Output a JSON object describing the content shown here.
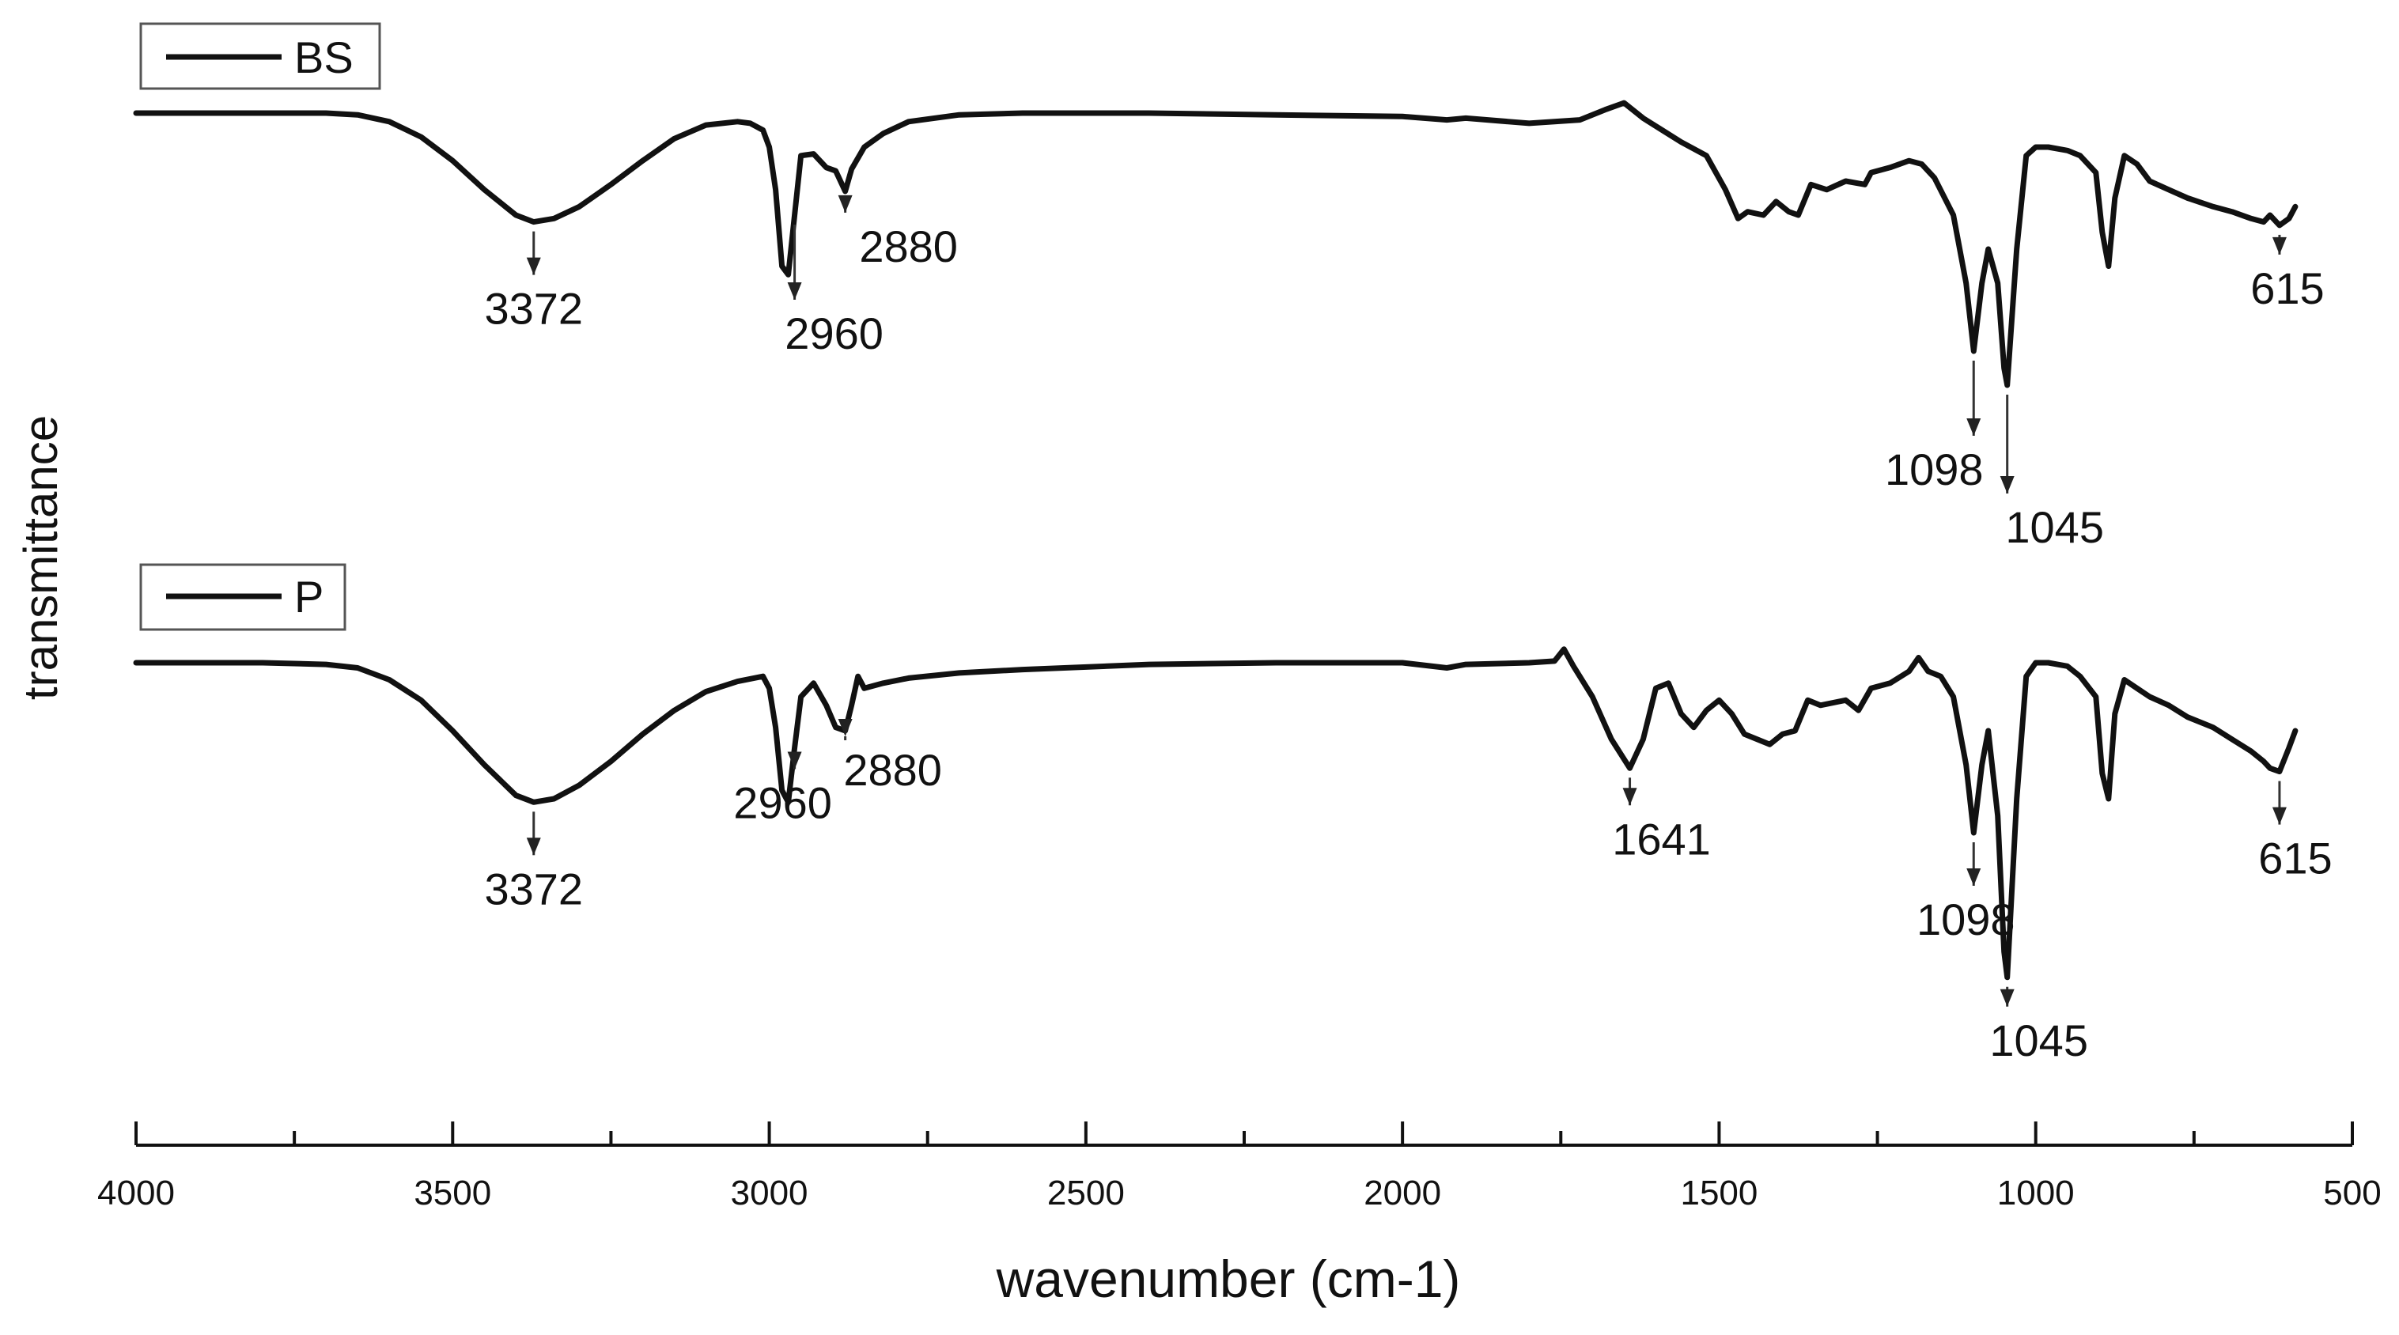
{
  "chart_data": {
    "type": "line",
    "xlabel": "wavenumber (cm-1)",
    "ylabel": "transmittance",
    "xlim": [
      4000,
      500
    ],
    "x_reversed": true,
    "x_ticks": [
      4000,
      3500,
      3000,
      2500,
      2000,
      1500,
      1000,
      500
    ],
    "x_tick_labels": [
      "4000",
      "3500",
      "3000",
      "2500",
      "2000",
      "1500",
      "1000",
      "500"
    ],
    "grid": false,
    "series": [
      {
        "name": "BS",
        "legend_label": "BS",
        "peaks": [
          {
            "x": 3372,
            "label": "3372"
          },
          {
            "x": 2960,
            "label": "2960"
          },
          {
            "x": 2880,
            "label": "2880"
          },
          {
            "x": 1098,
            "label": "1098"
          },
          {
            "x": 1045,
            "label": "1045"
          },
          {
            "x": 615,
            "label": "615"
          }
        ],
        "points": [
          [
            4000,
            0.0
          ],
          [
            3900,
            0.0
          ],
          [
            3800,
            0.0
          ],
          [
            3700,
            0.0
          ],
          [
            3650,
            0.01
          ],
          [
            3600,
            0.05
          ],
          [
            3550,
            0.14
          ],
          [
            3500,
            0.28
          ],
          [
            3450,
            0.45
          ],
          [
            3400,
            0.6
          ],
          [
            3372,
            0.64
          ],
          [
            3340,
            0.62
          ],
          [
            3300,
            0.55
          ],
          [
            3250,
            0.42
          ],
          [
            3200,
            0.28
          ],
          [
            3150,
            0.15
          ],
          [
            3100,
            0.07
          ],
          [
            3050,
            0.05
          ],
          [
            3030,
            0.06
          ],
          [
            3010,
            0.1
          ],
          [
            3000,
            0.2
          ],
          [
            2990,
            0.45
          ],
          [
            2980,
            0.9
          ],
          [
            2970,
            0.95
          ],
          [
            2960,
            0.6
          ],
          [
            2950,
            0.25
          ],
          [
            2930,
            0.24
          ],
          [
            2910,
            0.32
          ],
          [
            2895,
            0.34
          ],
          [
            2880,
            0.46
          ],
          [
            2870,
            0.33
          ],
          [
            2850,
            0.2
          ],
          [
            2820,
            0.12
          ],
          [
            2780,
            0.05
          ],
          [
            2700,
            0.01
          ],
          [
            2600,
            0.0
          ],
          [
            2400,
            0.0
          ],
          [
            2200,
            0.01
          ],
          [
            2000,
            0.02
          ],
          [
            1930,
            0.04
          ],
          [
            1900,
            0.03
          ],
          [
            1800,
            0.06
          ],
          [
            1720,
            0.04
          ],
          [
            1680,
            -0.02
          ],
          [
            1650,
            -0.06
          ],
          [
            1620,
            0.03
          ],
          [
            1590,
            0.1
          ],
          [
            1560,
            0.17
          ],
          [
            1520,
            0.25
          ],
          [
            1490,
            0.45
          ],
          [
            1470,
            0.62
          ],
          [
            1455,
            0.58
          ],
          [
            1430,
            0.6
          ],
          [
            1410,
            0.52
          ],
          [
            1390,
            0.58
          ],
          [
            1375,
            0.6
          ],
          [
            1355,
            0.42
          ],
          [
            1330,
            0.45
          ],
          [
            1300,
            0.4
          ],
          [
            1270,
            0.42
          ],
          [
            1260,
            0.35
          ],
          [
            1230,
            0.32
          ],
          [
            1200,
            0.28
          ],
          [
            1180,
            0.3
          ],
          [
            1160,
            0.38
          ],
          [
            1130,
            0.6
          ],
          [
            1110,
            1.0
          ],
          [
            1098,
            1.4
          ],
          [
            1085,
            1.0
          ],
          [
            1075,
            0.8
          ],
          [
            1060,
            1.0
          ],
          [
            1050,
            1.5
          ],
          [
            1045,
            1.6
          ],
          [
            1030,
            0.8
          ],
          [
            1015,
            0.25
          ],
          [
            1000,
            0.2
          ],
          [
            980,
            0.2
          ],
          [
            950,
            0.22
          ],
          [
            930,
            0.25
          ],
          [
            905,
            0.35
          ],
          [
            895,
            0.7
          ],
          [
            885,
            0.9
          ],
          [
            875,
            0.5
          ],
          [
            860,
            0.25
          ],
          [
            840,
            0.3
          ],
          [
            820,
            0.4
          ],
          [
            790,
            0.45
          ],
          [
            760,
            0.5
          ],
          [
            720,
            0.55
          ],
          [
            690,
            0.58
          ],
          [
            660,
            0.62
          ],
          [
            640,
            0.64
          ],
          [
            630,
            0.6
          ],
          [
            615,
            0.66
          ],
          [
            600,
            0.62
          ],
          [
            590,
            0.55
          ]
        ]
      },
      {
        "name": "P",
        "legend_label": "P",
        "peaks": [
          {
            "x": 3372,
            "label": "3372"
          },
          {
            "x": 2960,
            "label": "2960"
          },
          {
            "x": 2880,
            "label": "2880"
          },
          {
            "x": 1641,
            "label": "1641"
          },
          {
            "x": 1098,
            "label": "1098"
          },
          {
            "x": 1045,
            "label": "1045"
          },
          {
            "x": 615,
            "label": "615"
          }
        ],
        "points": [
          [
            4000,
            0.0
          ],
          [
            3900,
            0.0
          ],
          [
            3800,
            0.0
          ],
          [
            3700,
            0.01
          ],
          [
            3650,
            0.03
          ],
          [
            3600,
            0.1
          ],
          [
            3550,
            0.22
          ],
          [
            3500,
            0.4
          ],
          [
            3450,
            0.6
          ],
          [
            3400,
            0.78
          ],
          [
            3372,
            0.82
          ],
          [
            3340,
            0.8
          ],
          [
            3300,
            0.72
          ],
          [
            3250,
            0.58
          ],
          [
            3200,
            0.42
          ],
          [
            3150,
            0.28
          ],
          [
            3100,
            0.17
          ],
          [
            3050,
            0.11
          ],
          [
            3010,
            0.08
          ],
          [
            3000,
            0.15
          ],
          [
            2990,
            0.38
          ],
          [
            2980,
            0.75
          ],
          [
            2970,
            0.82
          ],
          [
            2960,
            0.5
          ],
          [
            2950,
            0.2
          ],
          [
            2930,
            0.12
          ],
          [
            2910,
            0.25
          ],
          [
            2895,
            0.38
          ],
          [
            2880,
            0.4
          ],
          [
            2870,
            0.25
          ],
          [
            2860,
            0.08
          ],
          [
            2850,
            0.15
          ],
          [
            2820,
            0.12
          ],
          [
            2780,
            0.09
          ],
          [
            2700,
            0.06
          ],
          [
            2600,
            0.04
          ],
          [
            2400,
            0.01
          ],
          [
            2200,
            0.0
          ],
          [
            2000,
            0.0
          ],
          [
            1930,
            0.03
          ],
          [
            1900,
            0.01
          ],
          [
            1800,
            0.0
          ],
          [
            1760,
            -0.01
          ],
          [
            1745,
            -0.08
          ],
          [
            1730,
            0.02
          ],
          [
            1700,
            0.2
          ],
          [
            1670,
            0.45
          ],
          [
            1641,
            0.62
          ],
          [
            1620,
            0.45
          ],
          [
            1600,
            0.15
          ],
          [
            1580,
            0.12
          ],
          [
            1560,
            0.3
          ],
          [
            1540,
            0.38
          ],
          [
            1520,
            0.28
          ],
          [
            1500,
            0.22
          ],
          [
            1480,
            0.3
          ],
          [
            1460,
            0.42
          ],
          [
            1440,
            0.45
          ],
          [
            1420,
            0.48
          ],
          [
            1400,
            0.42
          ],
          [
            1380,
            0.4
          ],
          [
            1360,
            0.22
          ],
          [
            1340,
            0.25
          ],
          [
            1300,
            0.22
          ],
          [
            1280,
            0.28
          ],
          [
            1260,
            0.15
          ],
          [
            1230,
            0.12
          ],
          [
            1200,
            0.05
          ],
          [
            1185,
            -0.03
          ],
          [
            1170,
            0.05
          ],
          [
            1150,
            0.08
          ],
          [
            1130,
            0.2
          ],
          [
            1110,
            0.6
          ],
          [
            1098,
            1.0
          ],
          [
            1085,
            0.6
          ],
          [
            1075,
            0.4
          ],
          [
            1060,
            0.9
          ],
          [
            1050,
            1.7
          ],
          [
            1045,
            1.85
          ],
          [
            1030,
            0.8
          ],
          [
            1015,
            0.08
          ],
          [
            1000,
            0.0
          ],
          [
            980,
            0.0
          ],
          [
            950,
            0.02
          ],
          [
            930,
            0.08
          ],
          [
            905,
            0.2
          ],
          [
            895,
            0.65
          ],
          [
            885,
            0.8
          ],
          [
            875,
            0.3
          ],
          [
            860,
            0.1
          ],
          [
            840,
            0.15
          ],
          [
            820,
            0.2
          ],
          [
            790,
            0.25
          ],
          [
            760,
            0.32
          ],
          [
            720,
            0.38
          ],
          [
            690,
            0.45
          ],
          [
            660,
            0.52
          ],
          [
            640,
            0.58
          ],
          [
            630,
            0.62
          ],
          [
            615,
            0.64
          ],
          [
            600,
            0.5
          ],
          [
            590,
            0.4
          ]
        ]
      }
    ]
  }
}
